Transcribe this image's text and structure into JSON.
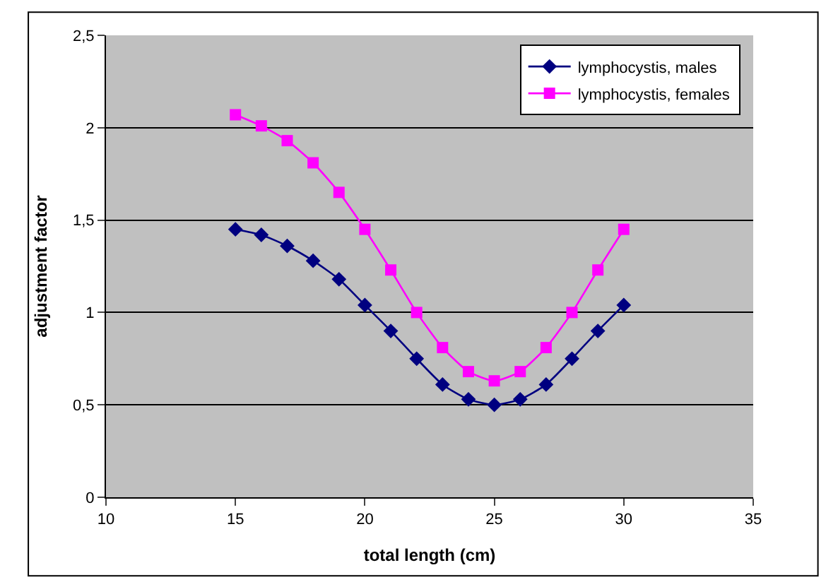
{
  "chart_data": {
    "type": "line",
    "xlabel": "total length (cm)",
    "ylabel": "adjustment factor",
    "x": [
      15,
      16,
      17,
      18,
      19,
      20,
      21,
      22,
      23,
      24,
      25,
      26,
      27,
      28,
      29,
      30
    ],
    "series": [
      {
        "name": "lymphocystis, males",
        "color": "#000080",
        "marker": "diamond",
        "values": [
          1.45,
          1.42,
          1.36,
          1.28,
          1.18,
          1.04,
          0.9,
          0.75,
          0.61,
          0.53,
          0.5,
          0.53,
          0.61,
          0.75,
          0.9,
          1.04
        ]
      },
      {
        "name": "lymphocystis, females",
        "color": "#ff00ff",
        "marker": "square",
        "values": [
          2.07,
          2.01,
          1.93,
          1.81,
          1.65,
          1.45,
          1.23,
          1.0,
          0.81,
          0.68,
          0.63,
          0.68,
          0.81,
          1.0,
          1.23,
          1.45
        ]
      }
    ],
    "xlim": [
      10,
      35
    ],
    "xticks": [
      10,
      15,
      20,
      25,
      30,
      35
    ],
    "ylim": [
      0,
      2.5
    ],
    "yticks": [
      0,
      {
        "value": 0.5,
        "label": "0,5"
      },
      1,
      {
        "value": 1.5,
        "label": "1,5"
      },
      2,
      {
        "value": 2.5,
        "label": "2,5"
      }
    ],
    "grid": "y",
    "legend": "top right",
    "line_style": "solid"
  }
}
